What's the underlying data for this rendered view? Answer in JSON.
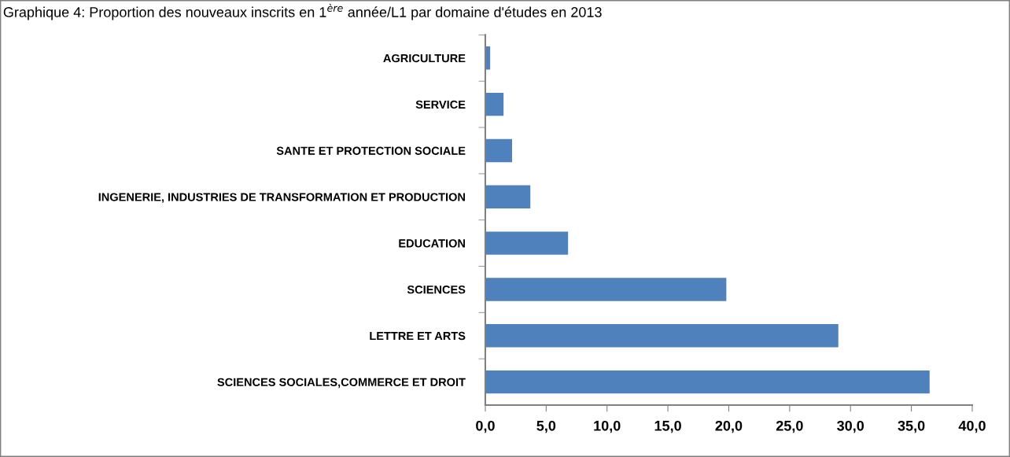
{
  "chart_data": {
    "type": "bar",
    "orientation": "horizontal",
    "title": "Graphique 4: Proportion des nouveaux inscrits en 1$^{ère}$ année/L1 par domaine d'études en 2013",
    "categories": [
      "AGRICULTURE",
      "SERVICE",
      "SANTE ET PROTECTION SOCIALE",
      "INGENERIE, INDUSTRIES DE TRANSFORMATION ET PRODUCTION",
      "EDUCATION",
      "SCIENCES",
      "LETTRE ET ARTS",
      "SCIENCES SOCIALES,COMMERCE ET DROIT"
    ],
    "values": [
      0.4,
      1.5,
      2.2,
      3.7,
      6.8,
      19.8,
      29.0,
      36.5
    ],
    "color": "#4f81bd",
    "xlim": [
      0,
      40
    ],
    "xticks": [
      {
        "value": 0,
        "label": "0,0"
      },
      {
        "value": 5,
        "label": "5,0"
      },
      {
        "value": 10,
        "label": "10,0"
      },
      {
        "value": 15,
        "label": "15,0"
      },
      {
        "value": 20,
        "label": "20,0"
      },
      {
        "value": 25,
        "label": "25,0"
      },
      {
        "value": 30,
        "label": "30,0"
      },
      {
        "value": 35,
        "label": "35,0"
      },
      {
        "value": 40,
        "label": "40,0"
      }
    ],
    "grid": false,
    "legend": false
  }
}
